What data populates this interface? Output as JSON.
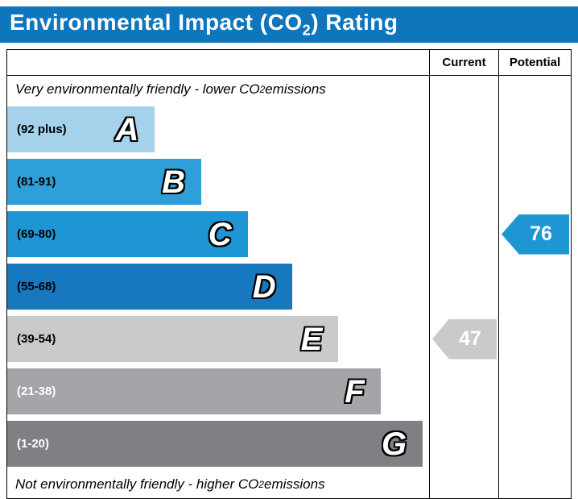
{
  "title": {
    "pre": "Environmental Impact (CO",
    "sub": "2",
    "post": ") Rating"
  },
  "table": {
    "current_header": "Current",
    "potential_header": "Potential"
  },
  "notes": {
    "top": {
      "pre": "Very environmentally friendly - lower CO",
      "sub": "2",
      "post": " emissions"
    },
    "bottom": {
      "pre": "Not environmentally friendly - higher CO",
      "sub": "2",
      "post": " emissions"
    }
  },
  "bands": [
    {
      "letter": "A",
      "range_label": "(92 plus)",
      "color": "#a5d2ea",
      "label_color": "#000000",
      "width_pct": 35
    },
    {
      "letter": "B",
      "range_label": "(81-91)",
      "color": "#2f9fda",
      "label_color": "#000000",
      "width_pct": 46
    },
    {
      "letter": "C",
      "range_label": "(69-80)",
      "color": "#1e96d4",
      "label_color": "#000000",
      "width_pct": 57
    },
    {
      "letter": "D",
      "range_label": "(55-68)",
      "color": "#1878bf",
      "label_color": "#000000",
      "width_pct": 67.5
    },
    {
      "letter": "E",
      "range_label": "(39-54)",
      "color": "#c9cacc",
      "label_color": "#000000",
      "width_pct": 78.5
    },
    {
      "letter": "F",
      "range_label": "(21-38)",
      "color": "#a3a5a8",
      "label_color": "#ffffff",
      "width_pct": 88.5
    },
    {
      "letter": "G",
      "range_label": "(1-20)",
      "color": "#7e8083",
      "label_color": "#ffffff",
      "width_pct": 98.5
    }
  ],
  "current": {
    "value": "47",
    "band_index": 4,
    "color": "#c9cacc"
  },
  "potential": {
    "value": "76",
    "band_index": 2,
    "color": "#1e96d4"
  },
  "colors": {
    "banner": "#0e76bc",
    "border": "#000000"
  },
  "chart_data": {
    "type": "bar",
    "title": "Environmental Impact (CO2) Rating",
    "categories": [
      "A",
      "B",
      "C",
      "D",
      "E",
      "F",
      "G"
    ],
    "band_ranges": [
      "92 plus",
      "81-91",
      "69-80",
      "55-68",
      "39-54",
      "21-38",
      "1-20"
    ],
    "band_colors": [
      "#a5d2ea",
      "#2f9fda",
      "#1e96d4",
      "#1878bf",
      "#c9cacc",
      "#a3a5a8",
      "#7e8083"
    ],
    "band_relative_widths_pct": [
      35,
      46,
      57,
      67.5,
      78.5,
      88.5,
      98.5
    ],
    "series": [
      {
        "name": "Current",
        "value": 47,
        "band": "E"
      },
      {
        "name": "Potential",
        "value": 76,
        "band": "C"
      }
    ],
    "top_annotation": "Very environmentally friendly - lower CO2 emissions",
    "bottom_annotation": "Not environmentally friendly - higher CO2 emissions",
    "value_range": [
      1,
      100
    ]
  }
}
